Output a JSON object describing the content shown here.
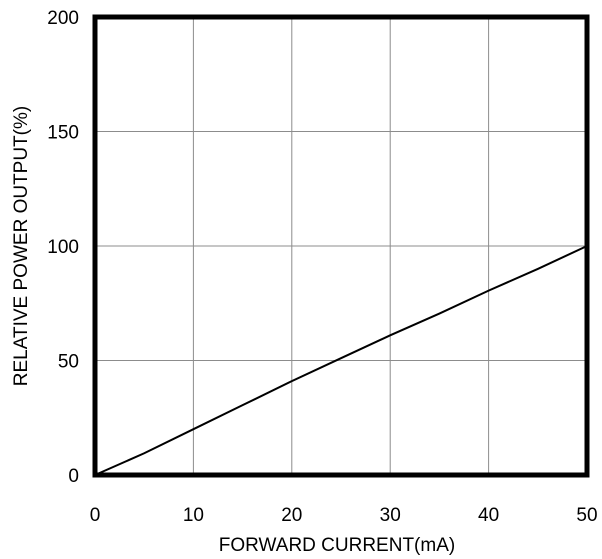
{
  "chart_data": {
    "type": "line",
    "title": "",
    "xlabel": "FORWARD CURRENT(mA)",
    "ylabel": "RELATIVE POWER OUTPUT(%)",
    "xlim": [
      0,
      50
    ],
    "ylim": [
      0,
      200
    ],
    "xticks": [
      0,
      10,
      20,
      30,
      40,
      50
    ],
    "yticks": [
      0,
      50,
      100,
      150,
      200
    ],
    "grid": true,
    "legend": "none",
    "series": [
      {
        "x": [
          0,
          5,
          10,
          15,
          20,
          25,
          30,
          35,
          40,
          45,
          50
        ],
        "y": [
          0,
          9.5,
          20,
          30.5,
          41,
          51,
          61,
          70.5,
          80.5,
          90,
          100
        ]
      }
    ]
  }
}
